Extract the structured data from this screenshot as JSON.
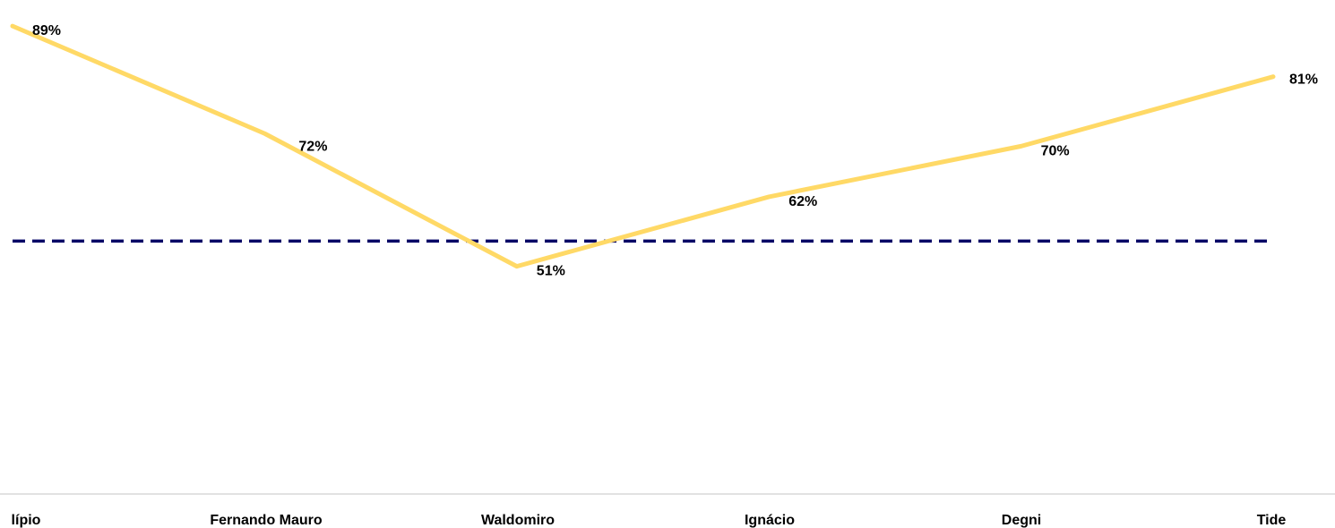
{
  "chart_data": {
    "type": "line",
    "categories": [
      "lípio",
      "Fernando Mauro",
      "Waldomiro",
      "Ignácio",
      "Degni",
      "Tide"
    ],
    "series": [
      {
        "values": [
          89,
          72,
          51,
          62,
          70,
          81
        ],
        "labels": [
          "89%",
          "72%",
          "51%",
          "62%",
          "70%",
          "81%"
        ],
        "color": "#FFD966"
      },
      {
        "values": [
          55,
          55,
          55,
          55,
          55,
          55
        ],
        "color": "#000066",
        "style": "dashed"
      }
    ],
    "ylim": [
      15,
      91
    ],
    "grid": false,
    "legend": "none"
  }
}
